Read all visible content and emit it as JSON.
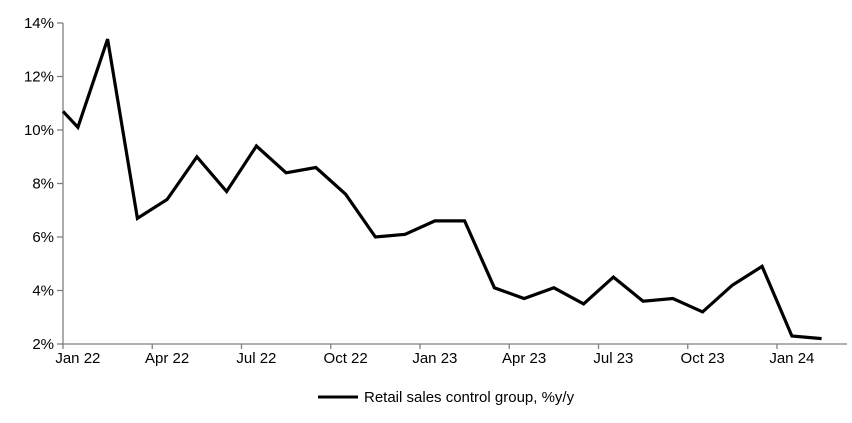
{
  "chart_data": {
    "type": "line",
    "title": "",
    "x": [
      "Jan 22",
      "Feb 22",
      "Mar 22",
      "Apr 22",
      "May 22",
      "Jun 22",
      "Jul 22",
      "Aug 22",
      "Sep 22",
      "Oct 22",
      "Nov 22",
      "Dec 22",
      "Jan 23",
      "Feb 23",
      "Mar 23",
      "Apr 23",
      "May 23",
      "Jun 23",
      "Jul 23",
      "Aug 23",
      "Sep 23",
      "Oct 23",
      "Nov 23",
      "Dec 23",
      "Jan 24",
      "Feb 24"
    ],
    "series": [
      {
        "name": "Retail sales control group, %y/y",
        "values": [
          10.1,
          13.4,
          6.7,
          7.4,
          9.0,
          7.7,
          9.4,
          8.4,
          8.6,
          7.6,
          6.0,
          6.1,
          6.6,
          6.6,
          4.1,
          3.7,
          4.1,
          3.5,
          4.5,
          3.6,
          3.7,
          3.2,
          4.2,
          4.9,
          2.3,
          2.2
        ]
      }
    ],
    "line_start_at_left_edge_pct": 10.7,
    "ylim": [
      2,
      14
    ],
    "ytick_step": 2,
    "ytick_labels": [
      "2%",
      "4%",
      "6%",
      "8%",
      "10%",
      "12%",
      "14%"
    ],
    "xtick_labels": [
      "Jan 22",
      "Apr 22",
      "Jul 22",
      "Oct 22",
      "Jan 23",
      "Apr 23",
      "Jul 23",
      "Oct 23",
      "Jan 24"
    ],
    "xtick_interval_months": 3,
    "grid": false,
    "legend_position": "bottom-center",
    "legend_label": "Retail sales control group, %y/y",
    "colors": {
      "series": "#000000",
      "axis": "#808080",
      "text": "#000000",
      "background": "#ffffff"
    }
  }
}
